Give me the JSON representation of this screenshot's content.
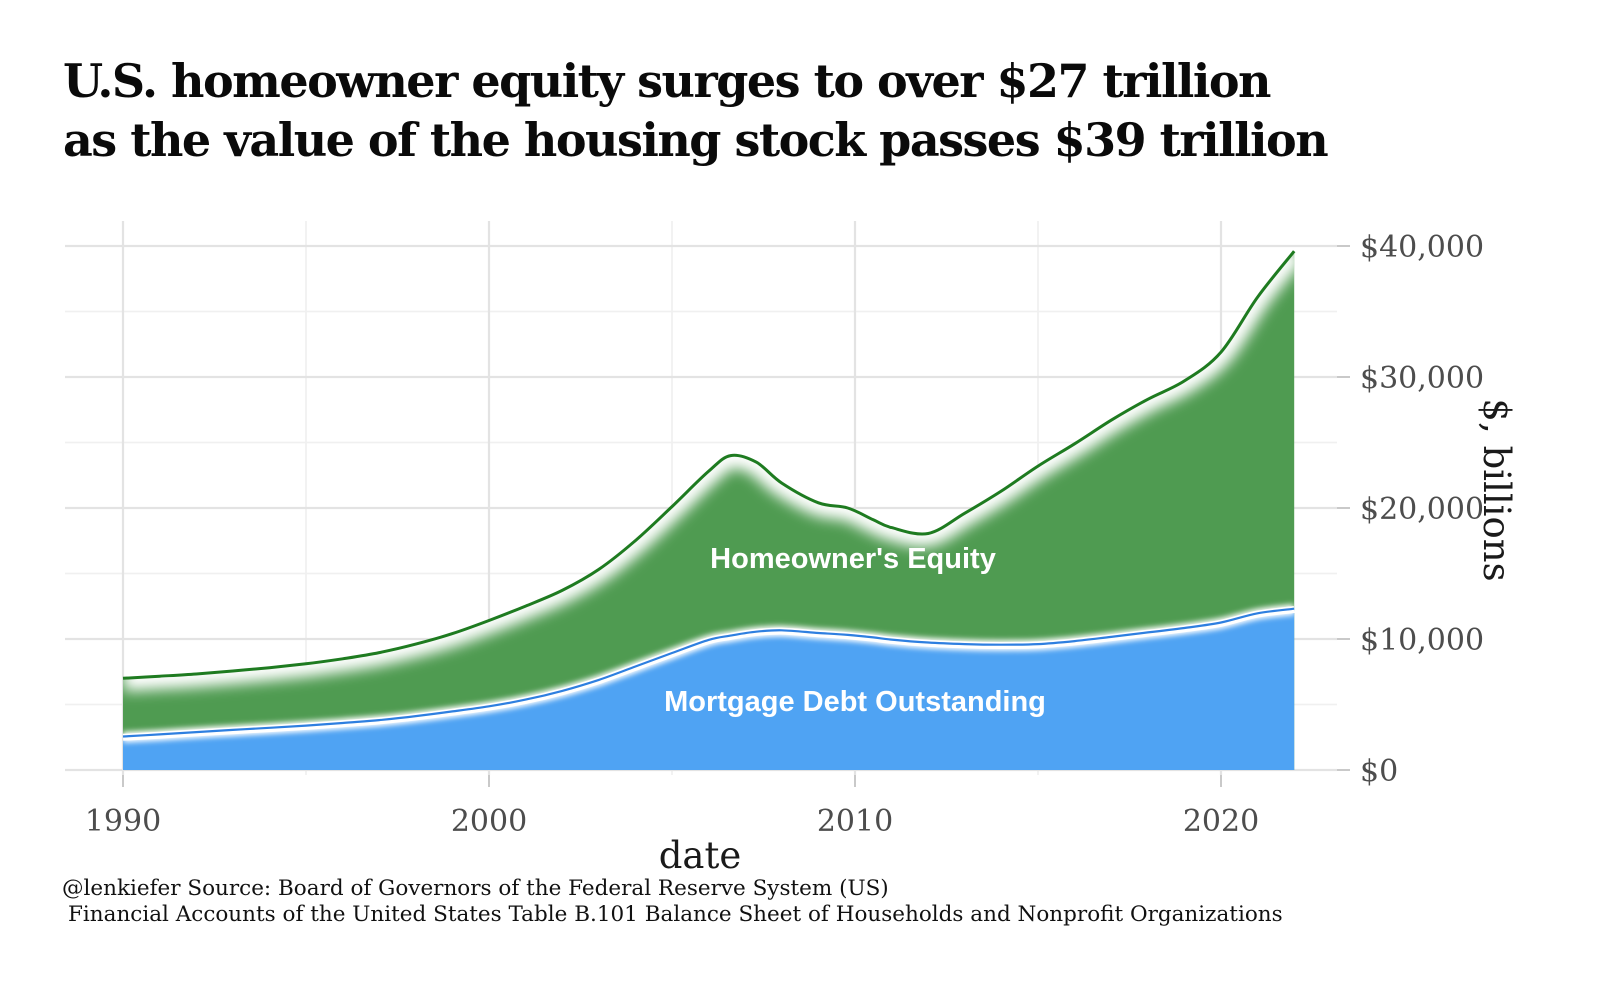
{
  "title": {
    "line1": "U.S. homeowner equity surges to over $27 trillion",
    "line2": "as the value of the housing stock passes $39 trillion"
  },
  "caption": {
    "line1": "@lenkiefer Source: Board of Governors of the Federal Reserve System (US)",
    "line2": "Financial Accounts of the United States Table B.101 Balance Sheet of Households and Nonprofit Organizations"
  },
  "chart_data": {
    "type": "area",
    "stacked": true,
    "title": "U.S. homeowner equity surges to over $27 trillion as the value of the housing stock passes $39 trillion",
    "xlabel": "date",
    "ylabel": "$, billions",
    "units": "$ billions",
    "grid": true,
    "legend_position": "labels drawn inside areas",
    "xlim": [
      1988.4,
      2023.3
    ],
    "ylim": [
      0,
      41900
    ],
    "x": [
      1990,
      1991,
      1992,
      1993,
      1994,
      1995,
      1996,
      1997,
      1998,
      1999,
      2000,
      2001,
      2002,
      2003,
      2004,
      2005,
      2006,
      2006.6,
      2007.3,
      2008,
      2009,
      2009.8,
      2010.5,
      2011,
      2012,
      2013,
      2014,
      2015,
      2016,
      2017,
      2018,
      2019,
      2020,
      2021,
      2022
    ],
    "series": [
      {
        "name": "Mortgage Debt Outstanding",
        "stack_order": "bottom",
        "fill_color": "#4fa3f3",
        "line_color": "#2e7fe0",
        "values": [
          2500,
          2660,
          2830,
          3000,
          3160,
          3330,
          3530,
          3750,
          4050,
          4410,
          4800,
          5310,
          5980,
          6820,
          7840,
          8870,
          9870,
          10200,
          10500,
          10600,
          10400,
          10250,
          10060,
          9890,
          9670,
          9550,
          9500,
          9550,
          9780,
          10100,
          10440,
          10780,
          11200,
          11900,
          12250
        ]
      },
      {
        "name": "Homeowner's Equity",
        "stack_order": "top",
        "fill_color": "#4f9b51",
        "line_color": "#1e7b20",
        "values": [
          4500,
          4500,
          4500,
          4560,
          4650,
          4780,
          4960,
          5210,
          5560,
          6000,
          6610,
          7200,
          7730,
          8490,
          9670,
          11240,
          12930,
          13800,
          13000,
          11300,
          10000,
          9750,
          9040,
          8610,
          8380,
          10050,
          11800,
          13650,
          15120,
          16600,
          17860,
          18920,
          20700,
          24200,
          27350
        ]
      }
    ],
    "y_ticks": {
      "values": [
        0,
        10000,
        20000,
        30000,
        40000
      ],
      "labels": [
        "$0",
        "$10,000",
        "$20,000",
        "$30,000",
        "$40,000"
      ]
    },
    "y_minor_ticks": [
      5000,
      15000,
      25000,
      35000
    ],
    "x_ticks": {
      "values": [
        1990,
        2000,
        2010,
        2020
      ],
      "labels": [
        "1990",
        "2000",
        "2010",
        "2020"
      ]
    },
    "x_minor_ticks": [
      1995,
      2005,
      2015
    ]
  },
  "colors": {
    "background": "#ffffff",
    "grid_major": "#e3e3e3",
    "grid_minor": "#f0f0f0",
    "tick_mark": "#c9c9c9",
    "axis_text": "#4d4d4d",
    "title_text": "#0a0a0a",
    "glow": "#ffffff"
  }
}
